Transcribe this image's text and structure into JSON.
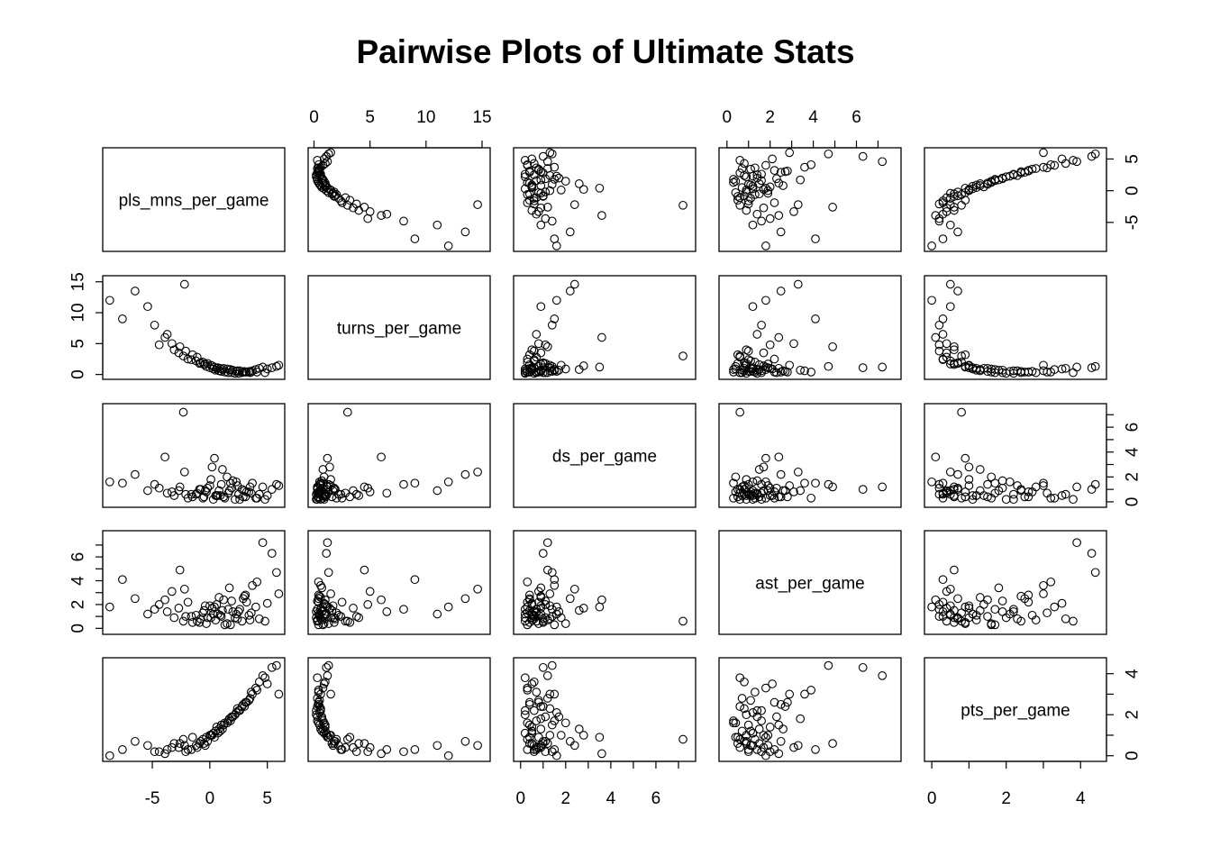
{
  "chart_data": {
    "type": "scatter",
    "title": "Pairwise Plots of Ultimate Stats",
    "variables": [
      {
        "name": "pls_mns_per_game",
        "range": [
          -9,
          6.2
        ],
        "ticks": [
          -5,
          0,
          5
        ],
        "tick_labels": [
          "-5",
          "0",
          "5"
        ]
      },
      {
        "name": "turns_per_game",
        "range": [
          -0.2,
          15.4
        ],
        "ticks": [
          0,
          5,
          10,
          15
        ],
        "tick_labels": [
          "0",
          "5",
          "10",
          "15"
        ]
      },
      {
        "name": "ds_per_game",
        "range": [
          -0.15,
          7.6
        ],
        "ticks": [
          0,
          1,
          2,
          3,
          4,
          5,
          6,
          7
        ],
        "tick_labels": [
          "0",
          "",
          "2",
          "",
          "4",
          "",
          "6",
          ""
        ]
      },
      {
        "name": "ast_per_game",
        "range": [
          -0.2,
          7.9
        ],
        "ticks": [
          0,
          1,
          2,
          3,
          4,
          5,
          6,
          7
        ],
        "tick_labels": [
          "0",
          "",
          "2",
          "",
          "4",
          "",
          "6",
          ""
        ]
      },
      {
        "name": "pts_per_game",
        "range": [
          -0.1,
          4.6
        ],
        "ticks": [
          0,
          1,
          2,
          3,
          4
        ],
        "tick_labels": [
          "0",
          "",
          "2",
          "",
          "4"
        ]
      }
    ],
    "axis_placement": {
      "top": [
        1,
        3
      ],
      "bottom": [
        0,
        2,
        4
      ],
      "left": [
        1,
        3
      ],
      "right": [
        0,
        2,
        4
      ]
    },
    "observations": {
      "pls_mns_per_game": [
        -8.7,
        -7.6,
        -6.5,
        -5.4,
        -4.8,
        -3.9,
        -3.3,
        -2.6,
        -2.1,
        -1.5,
        -2.2,
        -3.7,
        -4.4,
        -3.1,
        -2.7,
        -2.3,
        -1.9,
        -1.2,
        -0.8,
        -0.5,
        -0.3,
        0.0,
        0.3,
        0.5,
        0.8,
        1.0,
        1.3,
        1.6,
        1.9,
        2.2,
        2.5,
        2.8,
        3.1,
        3.4,
        3.7,
        4.0,
        4.3,
        4.6,
        5.0,
        5.4,
        5.8,
        6.0,
        -1.1,
        -0.6,
        0.1,
        0.6,
        1.1,
        1.7,
        2.3,
        2.9,
        3.5,
        0.4,
        1.5,
        2.6,
        3.2,
        -0.2,
        0.9,
        2.0,
        3.0,
        4.1,
        -1.6,
        -0.9,
        0.2,
        1.2,
        2.4,
        3.6,
        4.8,
        -0.4,
        0.7,
        1.8
      ],
      "turns_per_game": [
        12.0,
        9.0,
        13.5,
        11.0,
        8.0,
        6.0,
        5.0,
        4.5,
        3.8,
        3.2,
        14.6,
        6.5,
        4.8,
        4.0,
        3.5,
        3.0,
        2.5,
        2.2,
        1.9,
        1.6,
        1.3,
        1.1,
        0.9,
        0.7,
        0.6,
        0.5,
        0.4,
        0.3,
        0.3,
        0.2,
        0.2,
        0.3,
        0.4,
        0.5,
        0.6,
        0.8,
        1.0,
        1.2,
        0.9,
        1.1,
        1.3,
        1.5,
        2.8,
        2.0,
        1.5,
        1.0,
        0.8,
        0.7,
        0.5,
        0.4,
        0.3,
        1.2,
        0.9,
        0.6,
        0.4,
        1.8,
        1.0,
        0.7,
        0.5,
        0.4,
        2.4,
        1.8,
        1.4,
        1.0,
        0.6,
        0.4,
        0.3,
        1.7,
        1.1,
        0.8
      ],
      "ds_per_game": [
        1.6,
        1.5,
        2.2,
        0.9,
        1.4,
        3.6,
        0.8,
        1.2,
        0.6,
        0.4,
        2.4,
        0.7,
        1.1,
        0.5,
        0.9,
        7.2,
        0.3,
        0.6,
        1.0,
        0.4,
        0.8,
        1.3,
        0.2,
        0.5,
        0.9,
        1.4,
        0.3,
        0.7,
        1.1,
        0.2,
        0.6,
        1.0,
        0.4,
        0.8,
        1.5,
        0.3,
        0.6,
        1.2,
        0.5,
        1.0,
        1.4,
        1.3,
        0.7,
        0.3,
        1.8,
        0.5,
        2.6,
        0.9,
        1.6,
        0.4,
        1.2,
        3.5,
        2.0,
        0.2,
        0.8,
        1.1,
        0.5,
        1.7,
        0.9,
        0.3,
        0.6,
        1.0,
        2.8,
        0.4,
        1.3,
        0.7,
        0.2,
        0.9,
        0.5,
        1.5
      ],
      "ast_per_game": [
        1.8,
        4.1,
        2.5,
        1.2,
        1.6,
        2.4,
        3.1,
        4.9,
        1.0,
        0.5,
        3.3,
        1.4,
        2.0,
        0.9,
        1.7,
        0.6,
        2.2,
        1.1,
        0.8,
        1.5,
        0.4,
        1.9,
        1.2,
        0.7,
        2.6,
        1.0,
        0.3,
        1.6,
        2.3,
        0.9,
        1.4,
        0.6,
        2.8,
        1.1,
        3.6,
        1.8,
        0.8,
        7.2,
        2.1,
        6.3,
        4.7,
        2.9,
        0.6,
        1.3,
        0.9,
        2.0,
        1.5,
        3.4,
        1.2,
        2.5,
        0.7,
        1.8,
        0.4,
        1.6,
        2.2,
        0.9,
        1.1,
        1.4,
        2.7,
        3.9,
        1.0,
        0.5,
        1.7,
        2.4,
        0.8,
        1.3,
        0.6,
        1.9,
        1.2,
        0.3
      ],
      "pts_per_game": [
        0.0,
        0.3,
        0.7,
        0.5,
        0.2,
        0.1,
        0.4,
        0.6,
        0.2,
        0.9,
        0.5,
        0.3,
        0.2,
        0.6,
        0.4,
        0.8,
        0.3,
        0.5,
        0.7,
        0.6,
        0.9,
        1.0,
        1.1,
        1.2,
        1.3,
        1.5,
        1.6,
        1.7,
        1.9,
        2.0,
        2.2,
        2.4,
        2.6,
        2.7,
        3.0,
        3.3,
        3.6,
        3.9,
        3.5,
        4.3,
        4.4,
        3.0,
        0.4,
        0.8,
        1.0,
        1.4,
        1.3,
        1.8,
        2.1,
        2.5,
        2.8,
        0.9,
        1.6,
        2.2,
        2.6,
        0.7,
        1.2,
        1.9,
        2.4,
        3.2,
        0.3,
        0.6,
        1.0,
        1.5,
        2.3,
        3.1,
        3.8,
        0.5,
        1.1,
        1.7
      ]
    }
  }
}
